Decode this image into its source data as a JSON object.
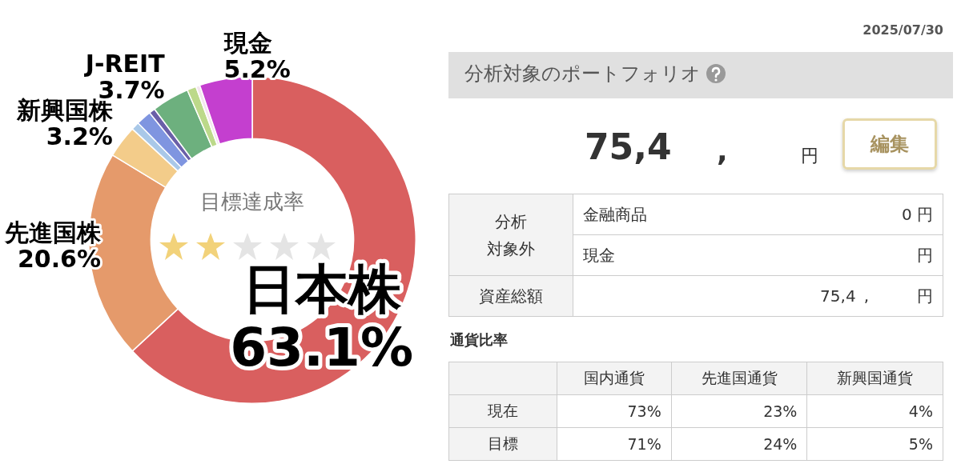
{
  "chart_data": [
    {
      "type": "donut",
      "categories": [
        "日本株",
        "先進国株",
        "新興国株",
        null,
        null,
        null,
        "J-REIT",
        null,
        null,
        "現金"
      ],
      "values": [
        63.1,
        20.6,
        3.2,
        0.8,
        1.5,
        0.6,
        3.7,
        0.9,
        0.4,
        5.2
      ],
      "value_labels": [
        "63.1%",
        "20.6%",
        "3.2%",
        null,
        null,
        null,
        "3.7%",
        null,
        null,
        "5.2%"
      ],
      "colors": [
        "#d95f5f",
        "#e59a6b",
        "#f3cc8a",
        "#a9c8e8",
        "#7f95e0",
        "#6a5fa8",
        "#6db07e",
        "#bcd98a",
        "#f4e6ef",
        "#c43fcf"
      ],
      "annotations": [
        "目標達成率"
      ],
      "legend": false
    },
    {
      "type": "other",
      "annotations": [
        "2025/07/30",
        "分析対象のポートフォリオ",
        "75,4",
        ",",
        "円",
        "編集",
        "分析",
        "対象外",
        "金融商品",
        "0 円",
        "現金",
        "円",
        "資産総額",
        "75,4",
        ",",
        "円",
        "通貨比率",
        "国内通貨",
        "先進国通貨",
        "新興国通貨",
        "現在",
        "73%",
        "23%",
        "4%",
        "目標",
        "71%",
        "24%",
        "5%"
      ]
    }
  ]
}
